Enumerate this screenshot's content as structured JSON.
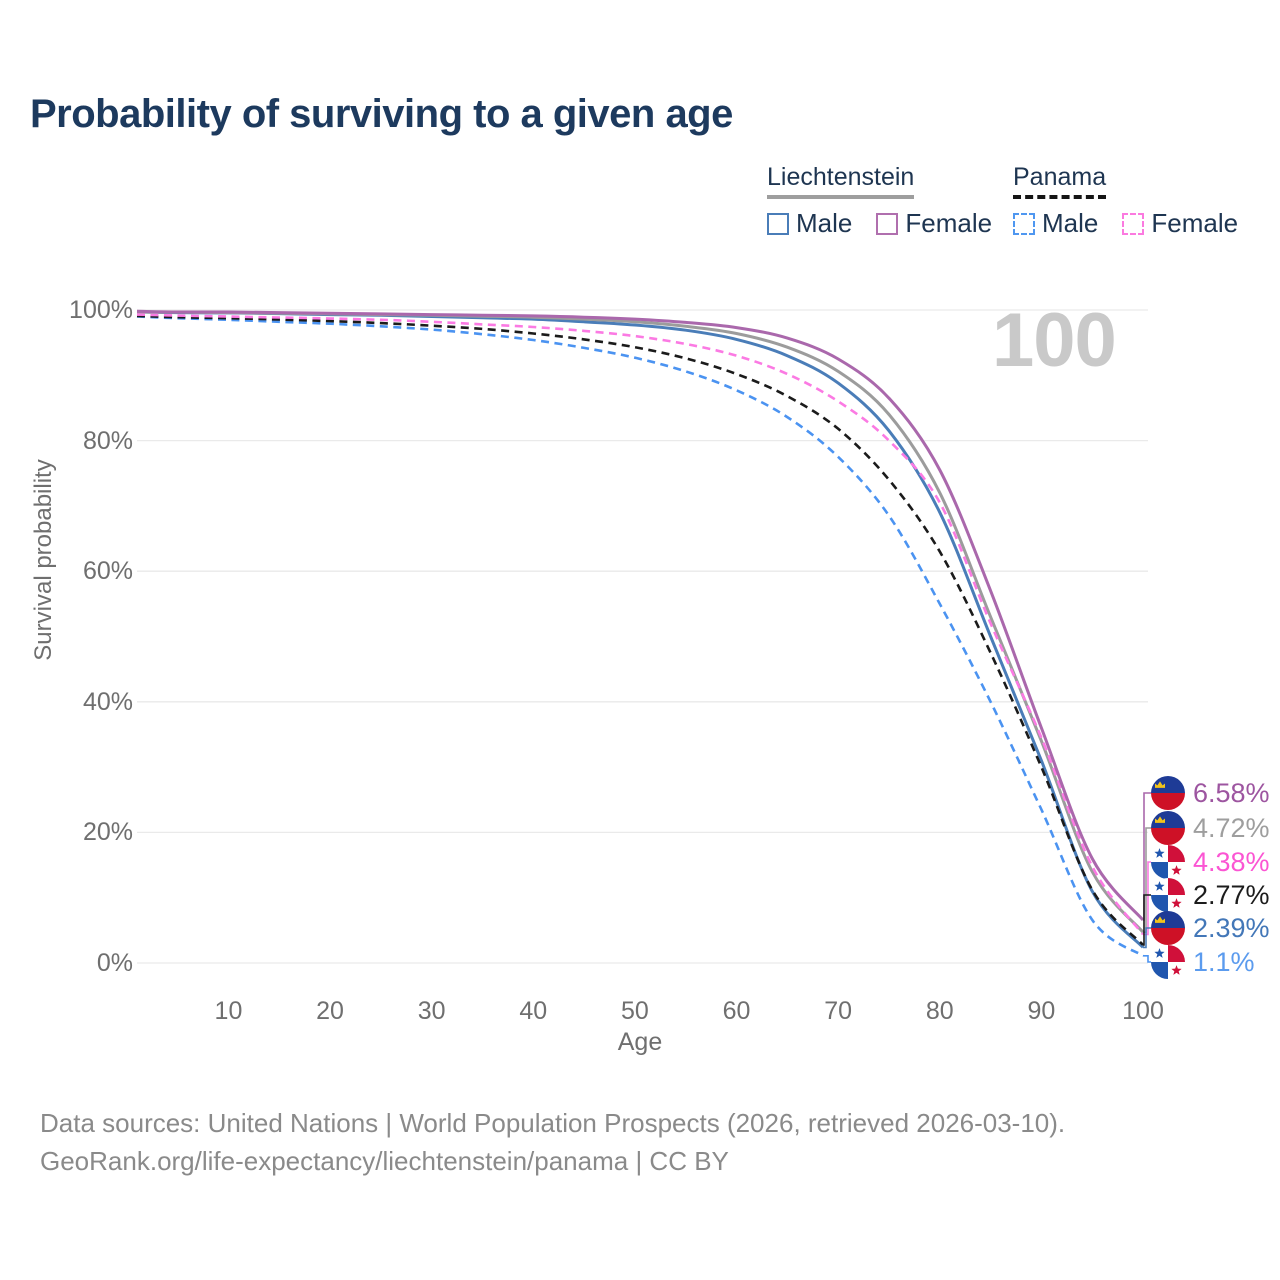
{
  "header": {
    "title": "Probability of surviving to a given age"
  },
  "watermark": "100",
  "legend": {
    "groups": [
      {
        "label": "Liechtenstein",
        "underline_style": "solid",
        "underline_color": "#9e9e9e",
        "items": [
          {
            "label": "Male",
            "swatch_color": "#4a7db8",
            "swatch_style": "solid"
          },
          {
            "label": "Female",
            "swatch_color": "#b06fae",
            "swatch_style": "solid"
          }
        ]
      },
      {
        "label": "Panama",
        "underline_style": "dashed",
        "underline_color": "#151515",
        "items": [
          {
            "label": "Male",
            "swatch_color": "#4f97f0",
            "swatch_style": "dashed"
          },
          {
            "label": "Female",
            "swatch_color": "#fb7ae0",
            "swatch_style": "dashed"
          }
        ]
      }
    ]
  },
  "chart_data": {
    "type": "line",
    "title": "Probability of surviving to a given age",
    "xlabel": "Age",
    "ylabel": "Survival probability",
    "xlim": [
      1,
      100
    ],
    "ylim": [
      0,
      100
    ],
    "grid": "horizontal-only",
    "x_ticks": [
      10,
      20,
      30,
      40,
      50,
      60,
      70,
      80,
      90,
      100
    ],
    "y_ticks": [
      {
        "label": "100%",
        "value": 100
      },
      {
        "label": "80%",
        "value": 80
      },
      {
        "label": "60%",
        "value": 60
      },
      {
        "label": "40%",
        "value": 40
      },
      {
        "label": "20%",
        "value": 20
      },
      {
        "label": "0%",
        "value": 0
      }
    ],
    "ages": [
      1,
      5,
      10,
      15,
      20,
      25,
      30,
      35,
      40,
      45,
      50,
      55,
      60,
      65,
      70,
      75,
      80,
      85,
      90,
      95,
      100
    ],
    "series": [
      {
        "id": "lie_female",
        "name": "Liechtenstein Female",
        "country": "Liechtenstein",
        "sex": "Female",
        "flag": "liechtenstein",
        "line_style": "solid",
        "color": "#aa68ac",
        "label_color": "#9d55a0",
        "end_label": "6.58%",
        "end_value": 6.58,
        "values": [
          99.8,
          99.7,
          99.7,
          99.6,
          99.5,
          99.4,
          99.3,
          99.2,
          99.1,
          98.9,
          98.6,
          98.1,
          97.3,
          95.7,
          92.5,
          86.5,
          75.5,
          57.0,
          36.0,
          16.0,
          6.58
        ]
      },
      {
        "id": "lie_total",
        "name": "Liechtenstein Both sexes",
        "country": "Liechtenstein",
        "sex": "All",
        "flag": "liechtenstein",
        "line_style": "solid",
        "color": "#9c9c9c",
        "label_color": "#9e9e9e",
        "end_label": "4.72%",
        "end_value": 4.72,
        "values": [
          99.7,
          99.65,
          99.6,
          99.5,
          99.4,
          99.3,
          99.2,
          99.05,
          98.9,
          98.6,
          98.2,
          97.5,
          96.4,
          94.3,
          90.6,
          84.0,
          72.0,
          53.0,
          34.0,
          14.0,
          4.72
        ]
      },
      {
        "id": "pan_female",
        "name": "Panama Female",
        "country": "Panama",
        "sex": "Female",
        "flag": "panama",
        "line_style": "dashed",
        "color": "#fb7ae3",
        "label_color": "#fb55d3",
        "end_label": "4.38%",
        "end_value": 4.38,
        "values": [
          99.3,
          99.15,
          99.0,
          98.85,
          98.7,
          98.5,
          98.2,
          97.8,
          97.4,
          96.8,
          96.0,
          94.8,
          93.0,
          90.2,
          86.0,
          80.0,
          70.5,
          52.0,
          34.5,
          14.8,
          4.38
        ]
      },
      {
        "id": "pan_total",
        "name": "Panama Both sexes",
        "country": "Panama",
        "sex": "All",
        "flag": "panama",
        "line_style": "dashed",
        "color": "#1b1b1b",
        "label_color": "#1c1c1c",
        "end_label": "2.77%",
        "end_value": 2.77,
        "values": [
          99.1,
          98.9,
          98.75,
          98.55,
          98.3,
          98.0,
          97.6,
          97.1,
          96.4,
          95.5,
          94.3,
          92.6,
          90.2,
          86.8,
          81.8,
          74.0,
          63.0,
          47.5,
          30.0,
          11.2,
          2.77
        ]
      },
      {
        "id": "lie_male",
        "name": "Liechtenstein Male",
        "country": "Liechtenstein",
        "sex": "Male",
        "flag": "liechtenstein",
        "line_style": "solid",
        "color": "#4a7db8",
        "label_color": "#4377b8",
        "end_label": "2.39%",
        "end_value": 2.39,
        "values": [
          99.7,
          99.6,
          99.55,
          99.45,
          99.3,
          99.2,
          99.0,
          98.8,
          98.6,
          98.2,
          97.7,
          96.9,
          95.5,
          93.0,
          88.8,
          81.5,
          69.0,
          50.0,
          31.0,
          11.0,
          2.39
        ]
      },
      {
        "id": "pan_male",
        "name": "Panama Male",
        "country": "Panama",
        "sex": "Male",
        "flag": "panama",
        "line_style": "dashed",
        "color": "#4b93f1",
        "label_color": "#5b9bee",
        "end_label": "1.1%",
        "end_value": 1.1,
        "values": [
          99.0,
          98.75,
          98.5,
          98.2,
          97.9,
          97.5,
          97.0,
          96.3,
          95.4,
          94.2,
          92.7,
          90.6,
          87.7,
          83.6,
          77.5,
          68.5,
          55.0,
          40.0,
          23.5,
          6.6,
          1.1
        ]
      }
    ],
    "end_label_order": [
      "lie_female",
      "lie_total",
      "pan_female",
      "pan_total",
      "lie_male",
      "pan_male"
    ],
    "draw_order": [
      "pan_male",
      "lie_male",
      "pan_total",
      "lie_total",
      "pan_female",
      "lie_female"
    ],
    "legend_position": "top-right",
    "colors": {
      "gridline": "#eaeaea",
      "axis_text": "#6f6f6f",
      "title_text": "#1d3a5e",
      "watermark": "#c9c9c9",
      "footer_text": "#8a8a8a",
      "liechtenstein_flag_blue": "#1e3b96",
      "liechtenstein_flag_red": "#ce1126",
      "liechtenstein_flag_gold": "#f2c31b",
      "panama_flag_blue": "#2056ae",
      "panama_flag_red": "#d0103a"
    }
  },
  "footer": {
    "line1": "Data sources: United Nations | World Population Prospects (2026, retrieved 2026-03-10).",
    "line2": "GeoRank.org/life-expectancy/liechtenstein/panama | CC BY"
  }
}
